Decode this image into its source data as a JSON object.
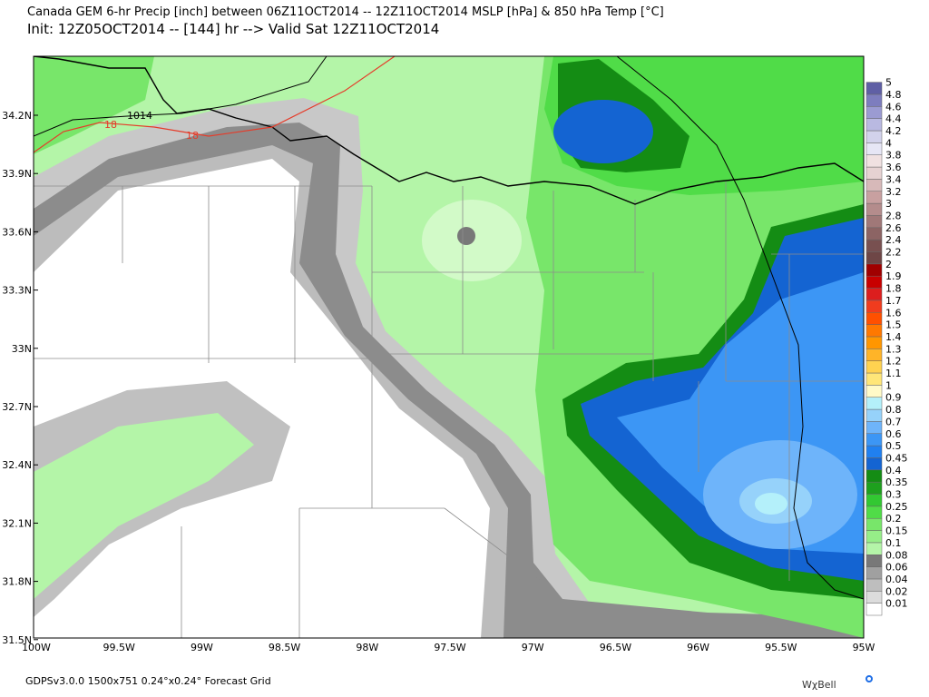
{
  "header": {
    "title": "Canada GEM 6-hr Precip [inch] between 06Z11OCT2014 -- 12Z11OCT2014 MSLP [hPa] & 850 hPa Temp [°C]",
    "subtitle": "Init: 12Z05OCT2014 -- [144] hr --> Valid Sat 12Z11OCT2014"
  },
  "map": {
    "lat_labels": [
      "34.2N",
      "33.9N",
      "33.6N",
      "33.3N",
      "33N",
      "32.7N",
      "32.4N",
      "32.1N",
      "31.8N",
      "31.5N"
    ],
    "lon_labels": [
      "100W",
      "99.5W",
      "99W",
      "98.5W",
      "98W",
      "97.5W",
      "97W",
      "96.5W",
      "96W",
      "95.5W",
      "95W"
    ],
    "isobar_label": "1014",
    "isotherm_labels": [
      "18",
      "18"
    ]
  },
  "colorbar": {
    "labels": [
      "0.01",
      "0.02",
      "0.04",
      "0.06",
      "0.08",
      "0.1",
      "0.15",
      "0.2",
      "0.25",
      "0.3",
      "0.35",
      "0.4",
      "0.45",
      "0.5",
      "0.6",
      "0.7",
      "0.8",
      "0.9",
      "1",
      "1.1",
      "1.2",
      "1.3",
      "1.4",
      "1.5",
      "1.6",
      "1.7",
      "1.8",
      "1.9",
      "2",
      "2.2",
      "2.4",
      "2.6",
      "2.8",
      "3",
      "3.2",
      "3.4",
      "3.6",
      "3.8",
      "4",
      "4.2",
      "4.4",
      "4.6",
      "4.8",
      "5"
    ],
    "colors": [
      "#ffffff",
      "#dcdcdc",
      "#bebebe",
      "#a0a0a0",
      "#787878",
      "#b4f5a8",
      "#96ee88",
      "#78e66a",
      "#50dc48",
      "#32c832",
      "#1ea01e",
      "#148c14",
      "#1464d2",
      "#2080f0",
      "#3c96f5",
      "#6eb4fa",
      "#96d2fa",
      "#b4f0fa",
      "#fffac8",
      "#ffe678",
      "#ffd250",
      "#ffb428",
      "#ff9600",
      "#ff7800",
      "#ff5000",
      "#f03c1e",
      "#dc1e1e",
      "#c80000",
      "#a00000",
      "#6e4646",
      "#785050",
      "#8c6464",
      "#a07878",
      "#b48c8c",
      "#c8a0a0",
      "#d7b9b9",
      "#e6d2d2",
      "#f0e1e1",
      "#e6e6f5",
      "#d2d2eb",
      "#b9b9e1",
      "#9b9bd2",
      "#7d7dbe",
      "#5f5fa5"
    ]
  },
  "footer": {
    "grid_info": "GDPSv3.0.0 1500x751 0.24°x0.24° Forecast Grid",
    "brand": "WχBell"
  }
}
